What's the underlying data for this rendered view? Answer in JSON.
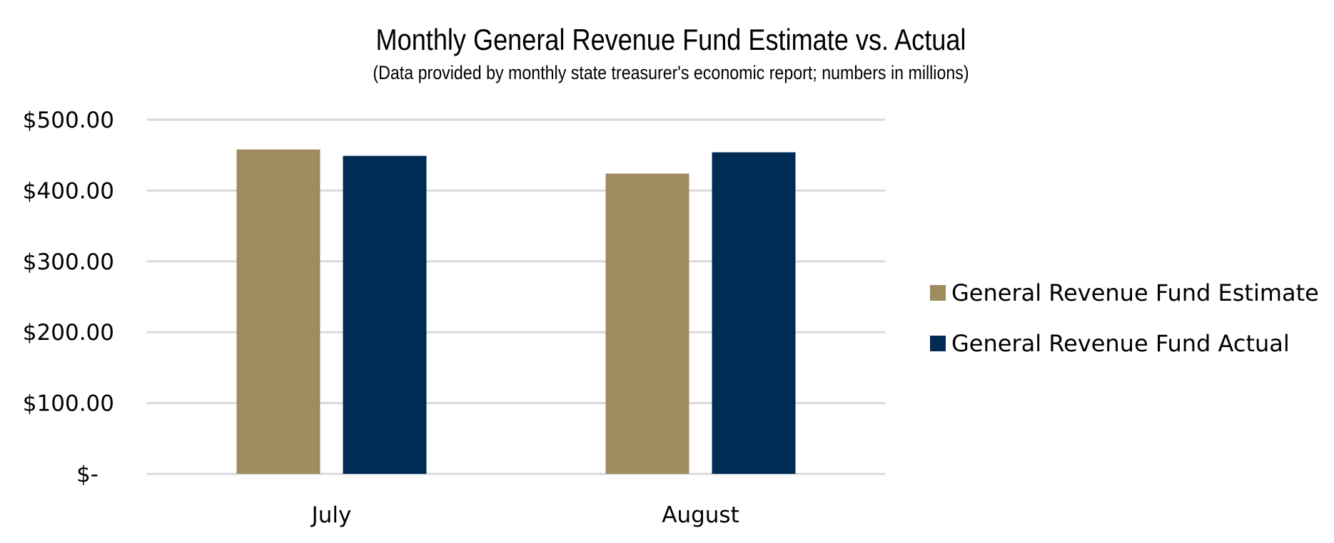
{
  "chart_data": {
    "type": "bar",
    "title": "Monthly General Revenue Fund Estimate vs. Actual",
    "subtitle": "(Data provided by monthly state treasurer's economic report; numbers in millions)",
    "xlabel": "",
    "ylabel": "",
    "categories": [
      "July",
      "August"
    ],
    "series": [
      {
        "name": "General Revenue Fund Estimate",
        "color": "#9E8C5E",
        "values": [
          458,
          424
        ]
      },
      {
        "name": "General Revenue Fund Actual",
        "color": "#002B55",
        "values": [
          449,
          454
        ]
      }
    ],
    "ylim": [
      0,
      500
    ],
    "yticks": [
      0,
      100,
      200,
      300,
      400,
      500
    ],
    "ytick_labels": [
      "$-",
      "$100.00",
      "$200.00",
      "$300.00",
      "$400.00",
      "$500.00"
    ],
    "grid": true,
    "gridline_color": "#D9D9D9",
    "legend_position": "right"
  }
}
